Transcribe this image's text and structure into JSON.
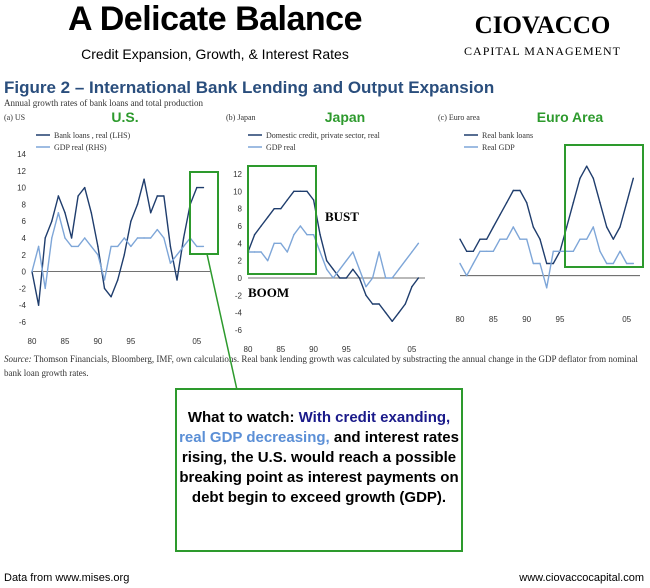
{
  "header": {
    "title": "A Delicate Balance",
    "subtitle": "Credit Expansion, Growth, & Interest Rates",
    "brand_name": "CIOVACCO",
    "brand_sub": "CAPITAL MANAGEMENT"
  },
  "figure": {
    "title": "Figure 2 – International Bank Lending and Output Expansion",
    "caption": "Annual growth rates of bank loans and total production",
    "source_label": "Source:",
    "source_text": "Thomson Financials, Bloomberg, IMF, own calculations. Real bank lending growth was calculated by substracting the annual change in the GDP deflator from nominal bank loan growth rates."
  },
  "callout": {
    "p1": "What to watch: ",
    "p2": "With credit exanding,",
    "p3": " real GDP decreasing,",
    "p4": " and interest rates rising, the U.S. would reach a possible breaking point as interest payments on debt begin to exceed growth (GDP)."
  },
  "footer": {
    "left": "Data from www.mises.org",
    "right": "www.ciovaccocapital.com"
  },
  "colors": {
    "dark_series": "#1f3d6d",
    "light_series": "#7ea6d8",
    "highlight": "#2d9a2d",
    "figure_title": "#2a4e7d"
  },
  "chart_data": [
    {
      "type": "line",
      "panel_label": "(a) US",
      "region_title": "U.S.",
      "ylim": [
        -6,
        14
      ],
      "yticks": [
        "-6",
        "-4",
        "-2",
        "0",
        "2",
        "4",
        "6",
        "8",
        "10",
        "12",
        "14"
      ],
      "xlim": [
        1980,
        2007
      ],
      "xticks": [
        "80",
        "85",
        "90",
        "95",
        "05"
      ],
      "x": [
        1980,
        1981,
        1982,
        1983,
        1984,
        1985,
        1986,
        1987,
        1988,
        1989,
        1990,
        1991,
        1992,
        1993,
        1994,
        1995,
        1996,
        1997,
        1998,
        1999,
        2000,
        2001,
        2002,
        2003,
        2004,
        2005,
        2006
      ],
      "series": [
        {
          "name": "Bank loans , real (LHS)",
          "values": [
            0,
            -4,
            4,
            6,
            9,
            7,
            4,
            9,
            10,
            7,
            3,
            -2,
            -3,
            -1,
            2,
            6,
            8,
            11,
            7,
            9,
            9,
            3,
            -1,
            4,
            8,
            10,
            10
          ]
        },
        {
          "name": "GDP real (RHS)",
          "values": [
            0,
            3,
            -2,
            4,
            7,
            4,
            3,
            3,
            4,
            3,
            2,
            -1,
            3,
            3,
            4,
            3,
            4,
            4,
            4,
            5,
            4,
            1,
            2,
            3,
            4,
            3,
            3
          ]
        }
      ],
      "annotations": []
    },
    {
      "type": "line",
      "panel_label": "(b) Japan",
      "region_title": "Japan",
      "ylim": [
        -6,
        12
      ],
      "yticks": [
        "-6",
        "-4",
        "-2",
        "0",
        "2",
        "4",
        "6",
        "8",
        "10",
        "12"
      ],
      "xlim": [
        1980,
        2007
      ],
      "xticks": [
        "80",
        "85",
        "90",
        "95",
        "05"
      ],
      "x": [
        1980,
        1981,
        1982,
        1983,
        1984,
        1985,
        1986,
        1987,
        1988,
        1989,
        1990,
        1991,
        1992,
        1993,
        1994,
        1995,
        1996,
        1997,
        1998,
        1999,
        2000,
        2001,
        2002,
        2003,
        2004,
        2005,
        2006
      ],
      "series": [
        {
          "name": "Domestic credit, private sector, real",
          "values": [
            3,
            5,
            6,
            7,
            8,
            8,
            9,
            10,
            10,
            10,
            9,
            5,
            2,
            1,
            0,
            0,
            1,
            0,
            -2,
            -3,
            -3,
            -4,
            -5,
            -4,
            -3,
            -1,
            0
          ]
        },
        {
          "name": "GDP real",
          "values": [
            3,
            3,
            3,
            2,
            4,
            4,
            3,
            5,
            6,
            5,
            5,
            3,
            1,
            0,
            1,
            2,
            3,
            1,
            -1,
            0,
            3,
            0,
            0,
            1,
            2,
            3,
            4
          ]
        }
      ],
      "annotations": [
        "BUST",
        "BOOM"
      ]
    },
    {
      "type": "line",
      "panel_label": "(c) Euro area",
      "region_title": "Euro Area",
      "ylim": [
        -2,
        10
      ],
      "yticks": [],
      "xlim": [
        1980,
        2007
      ],
      "xticks": [
        "80",
        "85",
        "90",
        "95",
        "05"
      ],
      "x": [
        1980,
        1981,
        1982,
        1983,
        1984,
        1985,
        1986,
        1987,
        1988,
        1989,
        1990,
        1991,
        1992,
        1993,
        1994,
        1995,
        1996,
        1997,
        1998,
        1999,
        2000,
        2001,
        2002,
        2003,
        2004,
        2005,
        2006
      ],
      "series": [
        {
          "name": "Real bank loans",
          "values": [
            3,
            2,
            2,
            3,
            3,
            4,
            5,
            6,
            7,
            7,
            6,
            4,
            3,
            1,
            1,
            2,
            4,
            6,
            8,
            9,
            8,
            6,
            4,
            3,
            4,
            6,
            8
          ]
        },
        {
          "name": "Real GDP",
          "values": [
            1,
            0,
            1,
            2,
            2,
            2,
            3,
            3,
            4,
            3,
            3,
            1,
            1,
            -1,
            2,
            2,
            2,
            2,
            3,
            3,
            4,
            2,
            1,
            1,
            2,
            1,
            1
          ]
        }
      ],
      "annotations": []
    }
  ]
}
